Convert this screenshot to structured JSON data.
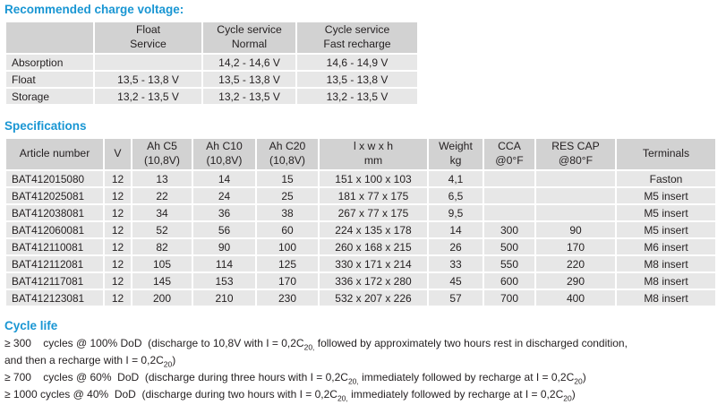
{
  "colors": {
    "accent_blue": "#1996d3",
    "table_header_gray": "#d2d2d2",
    "table_row_gray": "#e7e7e7",
    "text": "#231f20"
  },
  "charge_voltage": {
    "title": "Recommended charge voltage:",
    "columns": [
      [
        ""
      ],
      [
        "Float",
        "Service"
      ],
      [
        "Cycle service",
        "Normal"
      ],
      [
        "Cycle service",
        "Fast recharge"
      ]
    ],
    "rows": [
      {
        "label": "Absorption",
        "values": [
          "",
          "14,2 - 14,6 V",
          "14,6 - 14,9 V"
        ]
      },
      {
        "label": "Float",
        "values": [
          "13,5 - 13,8 V",
          "13,5 - 13,8 V",
          "13,5 - 13,8 V"
        ]
      },
      {
        "label": "Storage",
        "values": [
          "13,2 - 13,5 V",
          "13,2 - 13,5 V",
          "13,2 - 13,5 V"
        ]
      }
    ]
  },
  "specifications": {
    "title": "Specifications",
    "columns": [
      [
        "Article number"
      ],
      [
        "V"
      ],
      [
        "Ah C5",
        "(10,8V)"
      ],
      [
        "Ah C10",
        "(10,8V)"
      ],
      [
        "Ah C20",
        "(10,8V)"
      ],
      [
        "l x w x h",
        "mm"
      ],
      [
        "Weight",
        "kg"
      ],
      [
        "CCA",
        "@0°F"
      ],
      [
        "RES CAP",
        "@80°F"
      ],
      [
        "Terminals"
      ]
    ],
    "rows": [
      [
        "BAT412015080",
        "12",
        "13",
        "14",
        "15",
        "151 x 100 x 103",
        "4,1",
        "",
        "",
        "Faston"
      ],
      [
        "BAT412025081",
        "12",
        "22",
        "24",
        "25",
        "181 x 77 x 175",
        "6,5",
        "",
        "",
        "M5 insert"
      ],
      [
        "BAT412038081",
        "12",
        "34",
        "36",
        "38",
        "267 x 77 x 175",
        "9,5",
        "",
        "",
        "M5 insert"
      ],
      [
        "BAT412060081",
        "12",
        "52",
        "56",
        "60",
        "224 x 135 x 178",
        "14",
        "300",
        "90",
        "M5 insert"
      ],
      [
        "BAT412110081",
        "12",
        "82",
        "90",
        "100",
        "260 x 168 x 215",
        "26",
        "500",
        "170",
        "M6 insert"
      ],
      [
        "BAT412112081",
        "12",
        "105",
        "114",
        "125",
        "330 x 171 x 214",
        "33",
        "550",
        "220",
        "M8 insert"
      ],
      [
        "BAT412117081",
        "12",
        "145",
        "153",
        "170",
        "336 x 172 x 280",
        "45",
        "600",
        "290",
        "M8 insert"
      ],
      [
        "BAT412123081",
        "12",
        "200",
        "210",
        "230",
        "532 x 207 x 226",
        "57",
        "700",
        "400",
        "M8 insert"
      ]
    ]
  },
  "cycle_life": {
    "title": "Cycle life",
    "lines": [
      [
        {
          "t": "≥ 300    cycles @ 100% DoD  (discharge to 10,8V with I = 0,2C"
        },
        {
          "t": "20,",
          "sub": true
        },
        {
          "t": " followed by approximately two hours rest in discharged condition,"
        }
      ],
      [
        {
          "t": "and then a recharge with I = 0,2C"
        },
        {
          "t": "20",
          "sub": true
        },
        {
          "t": ")"
        }
      ],
      [
        {
          "t": "≥ 700    cycles @ 60%  DoD  (discharge during three hours with I = 0,2C"
        },
        {
          "t": "20,",
          "sub": true
        },
        {
          "t": " immediately followed by recharge at I = 0,2C"
        },
        {
          "t": "20",
          "sub": true
        },
        {
          "t": ")"
        }
      ],
      [
        {
          "t": "≥ 1000 cycles @ 40%  DoD  (discharge during two hours with I = 0,2C"
        },
        {
          "t": "20,",
          "sub": true
        },
        {
          "t": " immediately followed by recharge at I = 0,2C"
        },
        {
          "t": "20",
          "sub": true
        },
        {
          "t": ")"
        }
      ]
    ]
  }
}
